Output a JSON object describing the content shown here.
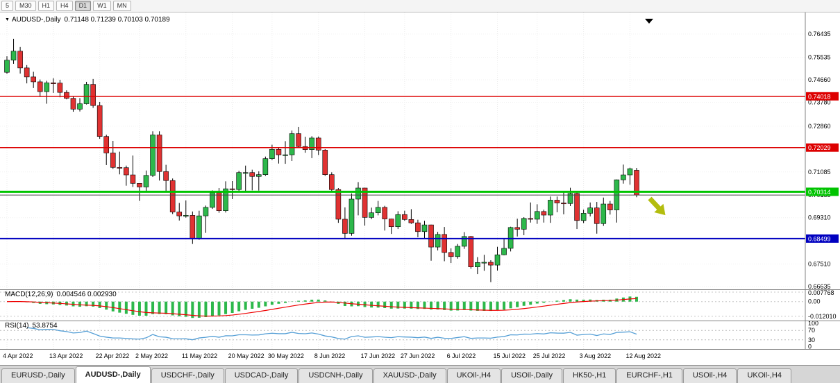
{
  "toolbar": {
    "timeframes": [
      {
        "label": "5",
        "active": false
      },
      {
        "label": "M30",
        "active": false
      },
      {
        "label": "H1",
        "active": false
      },
      {
        "label": "H4",
        "active": false
      },
      {
        "label": "D1",
        "active": true
      },
      {
        "label": "W1",
        "active": false
      },
      {
        "label": "MN",
        "active": false
      }
    ]
  },
  "chart": {
    "title": "AUDUSD-,Daily",
    "ohlc": "0.71148 0.71239 0.70103 0.70189"
  },
  "chart_data": {
    "type": "candlestick",
    "symbol": "AUDUSD",
    "timeframe": "Daily",
    "last_bar": {
      "open": 0.71148,
      "high": 0.71239,
      "low": 0.70103,
      "close": 0.70189
    },
    "price_axis": {
      "view_max": 0.7727,
      "view_min": 0.6653,
      "ticks": [
        "0.76435",
        "0.75535",
        "0.74660",
        "0.73780",
        "0.72860",
        "0.71085",
        "0.70185",
        "0.69310",
        "0.67510",
        "0.66635"
      ]
    },
    "hlines": [
      {
        "price": 0.74018,
        "label": "0.74018",
        "color": "#dd0000",
        "width": 1.5
      },
      {
        "price": 0.72029,
        "label": "0.72029",
        "color": "#dd0000",
        "width": 1.5
      },
      {
        "price": 0.70314,
        "label": "0.70314",
        "color": "#00c400",
        "width": 3
      },
      {
        "price": 0.68499,
        "label": "0.68499",
        "color": "#0000c0",
        "width": 2
      }
    ],
    "bid_line": {
      "price": 0.70189,
      "color": "#4a4a4a"
    },
    "x_ticks": [
      {
        "i": 0,
        "label": "4 Apr 2022"
      },
      {
        "i": 7,
        "label": "13 Apr 2022"
      },
      {
        "i": 14,
        "label": "22 Apr 2022"
      },
      {
        "i": 20,
        "label": "2 May 2022"
      },
      {
        "i": 27,
        "label": "11 May 2022"
      },
      {
        "i": 34,
        "label": "20 May 2022"
      },
      {
        "i": 40,
        "label": "30 May 2022"
      },
      {
        "i": 47,
        "label": "8 Jun 2022"
      },
      {
        "i": 54,
        "label": "17 Jun 2022"
      },
      {
        "i": 60,
        "label": "27 Jun 2022"
      },
      {
        "i": 67,
        "label": "6 Jul 2022"
      },
      {
        "i": 74,
        "label": "15 Jul 2022"
      },
      {
        "i": 80,
        "label": "25 Jul 2022"
      },
      {
        "i": 87,
        "label": "3 Aug 2022"
      },
      {
        "i": 94,
        "label": "12 Aug 2022"
      }
    ],
    "candles": [
      [
        0.7495,
        0.7557,
        0.7489,
        0.7542
      ],
      [
        0.7542,
        0.7625,
        0.7528,
        0.7577
      ],
      [
        0.7577,
        0.7593,
        0.749,
        0.7512
      ],
      [
        0.7512,
        0.7523,
        0.7452,
        0.7477
      ],
      [
        0.7477,
        0.7497,
        0.7434,
        0.7458
      ],
      [
        0.7458,
        0.7467,
        0.7399,
        0.742
      ],
      [
        0.742,
        0.7462,
        0.7373,
        0.7454
      ],
      [
        0.7454,
        0.7472,
        0.7415,
        0.7453
      ],
      [
        0.7453,
        0.7466,
        0.7398,
        0.7417
      ],
      [
        0.7417,
        0.7425,
        0.739,
        0.7394
      ],
      [
        0.7394,
        0.7402,
        0.7342,
        0.7352
      ],
      [
        0.7352,
        0.7395,
        0.7343,
        0.7373
      ],
      [
        0.7373,
        0.7458,
        0.737,
        0.7448
      ],
      [
        0.7448,
        0.7469,
        0.7357,
        0.7366
      ],
      [
        0.7366,
        0.738,
        0.7237,
        0.7246
      ],
      [
        0.7246,
        0.7253,
        0.7135,
        0.7182
      ],
      [
        0.7182,
        0.7229,
        0.712,
        0.7126
      ],
      [
        0.7126,
        0.7187,
        0.7099,
        0.7125
      ],
      [
        0.7125,
        0.7133,
        0.7055,
        0.7097
      ],
      [
        0.7097,
        0.7172,
        0.705,
        0.7064
      ],
      [
        0.7064,
        0.7065,
        0.6996,
        0.705
      ],
      [
        0.705,
        0.7114,
        0.7034,
        0.7095
      ],
      [
        0.7095,
        0.7266,
        0.7089,
        0.7252
      ],
      [
        0.7252,
        0.7266,
        0.7075,
        0.711
      ],
      [
        0.711,
        0.7136,
        0.7031,
        0.7075
      ],
      [
        0.7075,
        0.7083,
        0.6945,
        0.6953
      ],
      [
        0.6953,
        0.6988,
        0.692,
        0.6938
      ],
      [
        0.6938,
        0.6998,
        0.6931,
        0.694
      ],
      [
        0.694,
        0.6955,
        0.6829,
        0.6851
      ],
      [
        0.6851,
        0.6958,
        0.6845,
        0.6938
      ],
      [
        0.6938,
        0.6978,
        0.6872,
        0.6971
      ],
      [
        0.6971,
        0.7037,
        0.6965,
        0.7028
      ],
      [
        0.7028,
        0.7046,
        0.695,
        0.6958
      ],
      [
        0.6958,
        0.7072,
        0.6951,
        0.7043
      ],
      [
        0.7043,
        0.7073,
        0.7003,
        0.704
      ],
      [
        0.704,
        0.7113,
        0.7033,
        0.7106
      ],
      [
        0.7106,
        0.7133,
        0.7034,
        0.7106
      ],
      [
        0.7106,
        0.7117,
        0.7037,
        0.7091
      ],
      [
        0.7091,
        0.7111,
        0.7036,
        0.7098
      ],
      [
        0.7098,
        0.7168,
        0.7093,
        0.716
      ],
      [
        0.716,
        0.7214,
        0.7155,
        0.7196
      ],
      [
        0.7196,
        0.7204,
        0.7141,
        0.7175
      ],
      [
        0.7175,
        0.7228,
        0.714,
        0.7175
      ],
      [
        0.7175,
        0.7269,
        0.7151,
        0.7257
      ],
      [
        0.7257,
        0.7283,
        0.7202,
        0.7207
      ],
      [
        0.7207,
        0.7245,
        0.7183,
        0.7195
      ],
      [
        0.7195,
        0.7247,
        0.7162,
        0.724
      ],
      [
        0.724,
        0.7246,
        0.7174,
        0.7193
      ],
      [
        0.7193,
        0.7197,
        0.7093,
        0.7098
      ],
      [
        0.7098,
        0.7107,
        0.7031,
        0.704
      ],
      [
        0.704,
        0.7046,
        0.6911,
        0.6925
      ],
      [
        0.6925,
        0.6971,
        0.685,
        0.687
      ],
      [
        0.687,
        0.7025,
        0.6861,
        0.7003
      ],
      [
        0.7003,
        0.7069,
        0.694,
        0.7046
      ],
      [
        0.7046,
        0.7047,
        0.69,
        0.6932
      ],
      [
        0.6932,
        0.697,
        0.6925,
        0.695
      ],
      [
        0.695,
        0.6996,
        0.694,
        0.6971
      ],
      [
        0.6971,
        0.6977,
        0.6881,
        0.6926
      ],
      [
        0.6926,
        0.6927,
        0.6868,
        0.6896
      ],
      [
        0.6896,
        0.6956,
        0.6887,
        0.6943
      ],
      [
        0.6943,
        0.6958,
        0.6919,
        0.6924
      ],
      [
        0.6924,
        0.6964,
        0.6907,
        0.6911
      ],
      [
        0.6911,
        0.6923,
        0.6855,
        0.6877
      ],
      [
        0.6877,
        0.6919,
        0.685,
        0.6903
      ],
      [
        0.6903,
        0.6904,
        0.6764,
        0.6817
      ],
      [
        0.6817,
        0.6876,
        0.6804,
        0.6866
      ],
      [
        0.6866,
        0.6895,
        0.6762,
        0.6796
      ],
      [
        0.6796,
        0.6812,
        0.6755,
        0.678
      ],
      [
        0.678,
        0.6829,
        0.6772,
        0.682
      ],
      [
        0.682,
        0.6875,
        0.681,
        0.6858
      ],
      [
        0.6858,
        0.686,
        0.6733,
        0.674
      ],
      [
        0.674,
        0.6778,
        0.6712,
        0.6757
      ],
      [
        0.6757,
        0.6787,
        0.6725,
        0.6758
      ],
      [
        0.6758,
        0.6766,
        0.6681,
        0.6747
      ],
      [
        0.6747,
        0.6818,
        0.6726,
        0.6787
      ],
      [
        0.6787,
        0.6852,
        0.6785,
        0.6812
      ],
      [
        0.6812,
        0.6896,
        0.68,
        0.6893
      ],
      [
        0.6893,
        0.6927,
        0.6858,
        0.6886
      ],
      [
        0.6886,
        0.6933,
        0.6863,
        0.6928
      ],
      [
        0.6928,
        0.699,
        0.6912,
        0.6925
      ],
      [
        0.6925,
        0.6983,
        0.6907,
        0.6955
      ],
      [
        0.6955,
        0.6962,
        0.6912,
        0.6941
      ],
      [
        0.6941,
        0.7013,
        0.6911,
        0.6999
      ],
      [
        0.6999,
        0.7013,
        0.6952,
        0.6988
      ],
      [
        0.6988,
        0.7032,
        0.6944,
        0.6986
      ],
      [
        0.6986,
        0.7047,
        0.6976,
        0.7025
      ],
      [
        0.7025,
        0.7032,
        0.6887,
        0.692
      ],
      [
        0.692,
        0.6962,
        0.691,
        0.6948
      ],
      [
        0.6948,
        0.699,
        0.6936,
        0.6969
      ],
      [
        0.6969,
        0.6992,
        0.6869,
        0.6908
      ],
      [
        0.6908,
        0.7009,
        0.6899,
        0.6984
      ],
      [
        0.6984,
        0.6996,
        0.6943,
        0.6961
      ],
      [
        0.6961,
        0.7079,
        0.6912,
        0.7078
      ],
      [
        0.7078,
        0.7137,
        0.7063,
        0.7097
      ],
      [
        0.7097,
        0.7125,
        0.7059,
        0.7121
      ],
      [
        0.71148,
        0.71239,
        0.70103,
        0.70189
      ]
    ],
    "colors": {
      "up": "#2db84b",
      "down": "#e03232",
      "outline": "#000000",
      "wick": "#000000"
    },
    "annotations": {
      "sell_arrow": {
        "color": "#b3bd0e"
      },
      "end_marker_color": "#000000"
    },
    "indicators": {
      "macd": {
        "label": "MACD(12,26,9)",
        "values_text": "0.004546 0.002930",
        "fast": 12,
        "slow": 26,
        "signal": 9,
        "view_max": 0.0095,
        "view_min": -0.0155,
        "ticks": [
          {
            "v": 0.007768,
            "t": "0.007768"
          },
          {
            "v": 0,
            "t": "0.00"
          },
          {
            "v": -0.01201,
            "t": "-0.012010"
          }
        ],
        "histogram_color": "#2db84b",
        "signal_color": "#ee0000"
      },
      "rsi": {
        "label": "RSI(14)",
        "value_text": "53.8754",
        "period": 14,
        "color": "#559fd6",
        "levels": [
          {
            "v": 100,
            "t": "100",
            "dash": false
          },
          {
            "v": 70,
            "t": "70",
            "dash": true
          },
          {
            "v": 30,
            "t": "30",
            "dash": true
          },
          {
            "v": 0,
            "t": "0",
            "dash": false
          }
        ]
      }
    }
  },
  "tabs": [
    {
      "label": "EURUSD-,Daily",
      "active": false
    },
    {
      "label": "AUDUSD-,Daily",
      "active": true
    },
    {
      "label": "USDCHF-,Daily",
      "active": false
    },
    {
      "label": "USDCAD-,Daily",
      "active": false
    },
    {
      "label": "USDCNH-,Daily",
      "active": false
    },
    {
      "label": "XAUUSD-,Daily",
      "active": false
    },
    {
      "label": "UKOil-,H4",
      "active": false
    },
    {
      "label": "USOil-,Daily",
      "active": false
    },
    {
      "label": "HK50-,H1",
      "active": false
    },
    {
      "label": "EURCHF-,H1",
      "active": false
    },
    {
      "label": "USOil-,H4",
      "active": false
    },
    {
      "label": "UKOil-,H4",
      "active": false
    }
  ]
}
